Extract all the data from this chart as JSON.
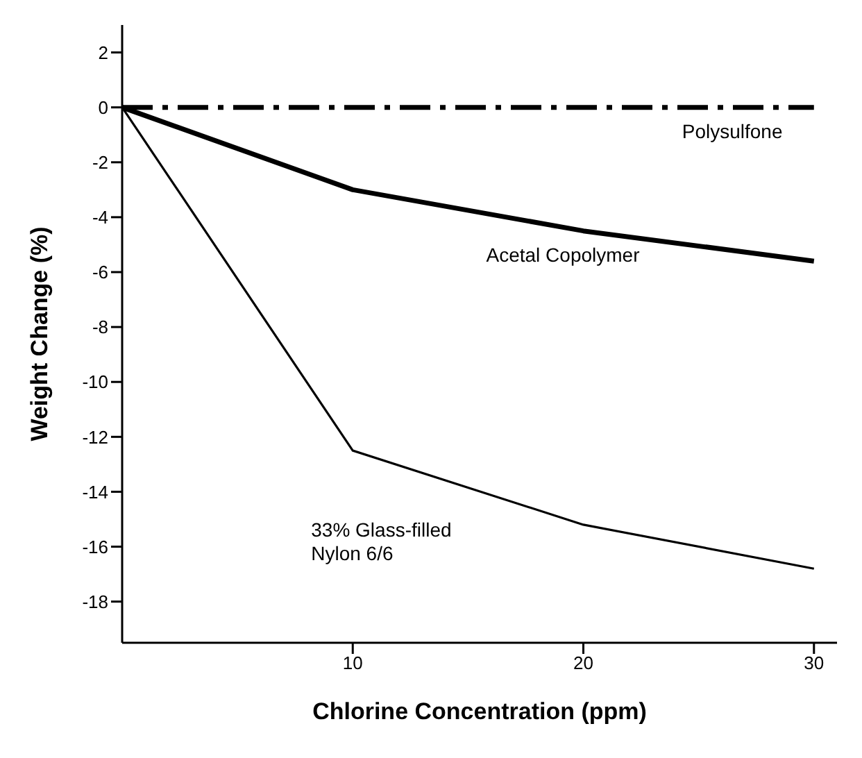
{
  "chart_data": {
    "type": "line",
    "xlabel": "Chlorine Concentration (ppm)",
    "ylabel": "Weight Change (%)",
    "x": [
      0,
      10,
      20,
      30
    ],
    "series": [
      {
        "name": "Polysulfone",
        "color": "#000000",
        "values": [
          0,
          0,
          0,
          0
        ],
        "line_style": "dashed"
      },
      {
        "name": "Acetal Copolymer",
        "color": "#000000",
        "values": [
          0,
          -3,
          -4.5,
          -5.6
        ]
      },
      {
        "name": "33% Glass-filled Nylon 6/6",
        "color": "#000000",
        "values": [
          0,
          -12.5,
          -15.2,
          -16.8
        ]
      }
    ],
    "xlim": [
      0,
      31
    ],
    "xticks": [
      10,
      20,
      30
    ],
    "ylim": [
      -19.5,
      3
    ],
    "yticks": [
      2,
      0,
      -2,
      -4,
      -6,
      -8,
      -10,
      -12,
      -14,
      -16,
      -18
    ],
    "grid": false,
    "legend": false,
    "marker": "none",
    "line_style": "solid"
  }
}
